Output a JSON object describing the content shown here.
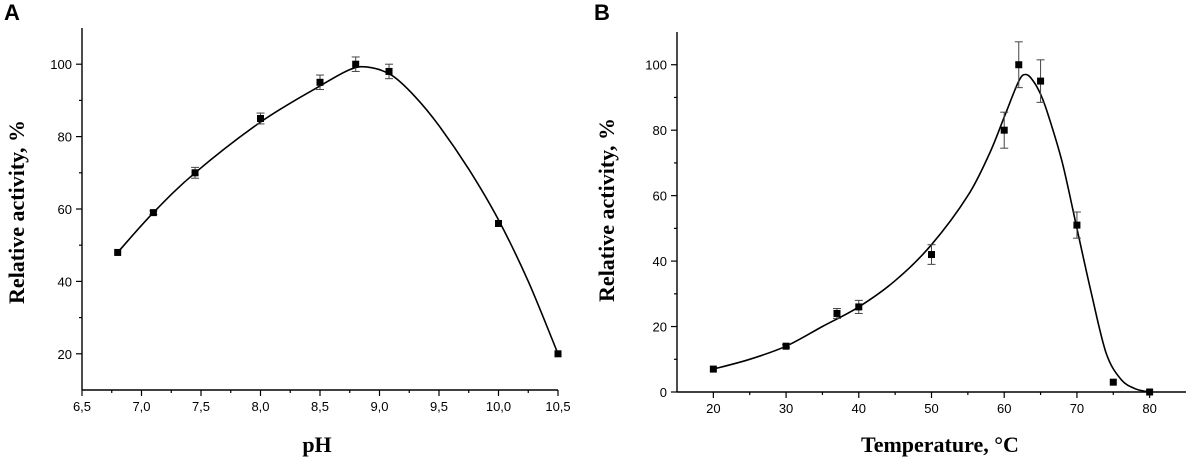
{
  "chart_data": [
    {
      "panel": "A",
      "type": "scatter",
      "xlabel": "pH",
      "ylabel": "Relative activity, %",
      "xlim": [
        6.5,
        10.5
      ],
      "ylim": [
        10,
        110
      ],
      "xticks": [
        "6,5",
        "7,0",
        "7,5",
        "8,0",
        "8,5",
        "9,0",
        "9,5",
        "10,0",
        "10,5"
      ],
      "yticks": [
        "20",
        "40",
        "60",
        "80",
        "100"
      ],
      "points": [
        {
          "x": 6.8,
          "y": 48,
          "err": 0
        },
        {
          "x": 7.1,
          "y": 59,
          "err": 0.5
        },
        {
          "x": 7.45,
          "y": 70,
          "err": 1.5
        },
        {
          "x": 8.0,
          "y": 85,
          "err": 1.5
        },
        {
          "x": 8.5,
          "y": 95,
          "err": 2
        },
        {
          "x": 8.8,
          "y": 100,
          "err": 2
        },
        {
          "x": 9.08,
          "y": 98,
          "err": 2
        },
        {
          "x": 10.0,
          "y": 56,
          "err": 0
        },
        {
          "x": 10.5,
          "y": 20,
          "err": 0
        }
      ],
      "fit": [
        [
          6.8,
          48
        ],
        [
          7.1,
          59
        ],
        [
          7.45,
          70
        ],
        [
          8.0,
          84
        ],
        [
          8.5,
          94
        ],
        [
          8.75,
          98.5
        ],
        [
          8.9,
          99.2
        ],
        [
          9.1,
          97
        ],
        [
          9.3,
          91
        ],
        [
          9.5,
          83
        ],
        [
          9.75,
          71
        ],
        [
          10.0,
          57
        ],
        [
          10.25,
          40
        ],
        [
          10.5,
          20
        ]
      ]
    },
    {
      "panel": "B",
      "type": "scatter",
      "xlabel": "Temperature, °C",
      "ylabel": "Relative activity, %",
      "xlim": [
        15,
        85
      ],
      "ylim": [
        0,
        110
      ],
      "xticks": [
        "20",
        "30",
        "40",
        "50",
        "60",
        "70",
        "80"
      ],
      "yticks": [
        "0",
        "20",
        "40",
        "60",
        "80",
        "100"
      ],
      "points": [
        {
          "x": 20,
          "y": 7,
          "err": 0
        },
        {
          "x": 30,
          "y": 14,
          "err": 0.5
        },
        {
          "x": 37,
          "y": 24,
          "err": 1.5
        },
        {
          "x": 40,
          "y": 26,
          "err": 2
        },
        {
          "x": 50,
          "y": 42,
          "err": 3
        },
        {
          "x": 60,
          "y": 80,
          "err": 5.5
        },
        {
          "x": 62,
          "y": 100,
          "err": 7
        },
        {
          "x": 65,
          "y": 95,
          "err": 6.5
        },
        {
          "x": 70,
          "y": 51,
          "err": 4
        },
        {
          "x": 75,
          "y": 3,
          "err": 0
        },
        {
          "x": 80,
          "y": 0,
          "err": 0
        }
      ],
      "fit": [
        [
          20,
          7
        ],
        [
          25,
          10
        ],
        [
          30,
          14
        ],
        [
          35,
          20
        ],
        [
          40,
          26
        ],
        [
          45,
          34
        ],
        [
          50,
          45
        ],
        [
          55,
          60
        ],
        [
          58,
          73
        ],
        [
          60,
          84
        ],
        [
          62,
          95
        ],
        [
          63,
          97
        ],
        [
          64,
          95
        ],
        [
          65,
          91
        ],
        [
          66,
          85
        ],
        [
          68,
          70
        ],
        [
          70,
          50
        ],
        [
          72,
          30
        ],
        [
          74,
          12
        ],
        [
          76,
          4
        ],
        [
          78,
          1
        ],
        [
          80,
          0
        ]
      ]
    }
  ]
}
